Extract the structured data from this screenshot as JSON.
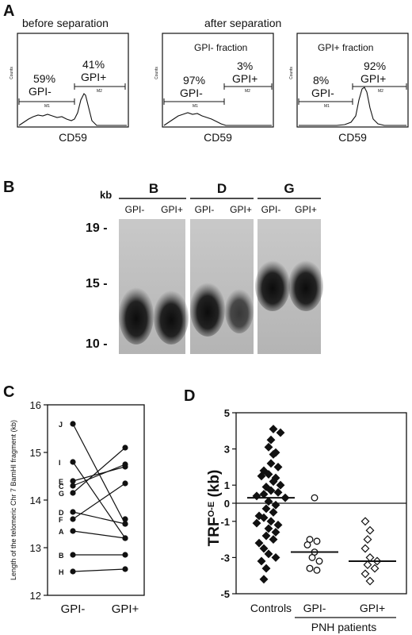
{
  "panel_a": {
    "letter": "A",
    "before_title": "before separation",
    "after_title": "after separation",
    "axis_label": "CD59",
    "y_axis_word": "Counts",
    "gate_left": "M1",
    "gate_right": "M2",
    "histograms": [
      {
        "subtitle": "",
        "left_pct": "59%",
        "left_label": "GPI-",
        "right_pct": "41%",
        "right_label": "GPI+"
      },
      {
        "subtitle": "GPI-  fraction",
        "left_pct": "97%",
        "left_label": "GPI-",
        "right_pct": "3%",
        "right_label": "GPI+"
      },
      {
        "subtitle": "GPI+ fraction",
        "left_pct": "8%",
        "left_label": "GPI-",
        "right_pct": "92%",
        "right_label": "GPI+"
      }
    ]
  },
  "panel_b": {
    "letter": "B",
    "kb_label": "kb",
    "size_markers": [
      "19 -",
      "15 -",
      "10 -"
    ],
    "groups": [
      {
        "name": "B",
        "lanes": [
          "GPI-",
          "GPI+"
        ]
      },
      {
        "name": "D",
        "lanes": [
          "GPI-",
          "GPI+"
        ]
      },
      {
        "name": "G",
        "lanes": [
          "GPI-",
          "GPI+"
        ]
      }
    ]
  },
  "panel_c": {
    "letter": "C",
    "chart_data": {
      "type": "line",
      "categories": [
        "GPI-",
        "GPI+"
      ],
      "ylabel": "Length of the telomeric Chr 7 BamHI fragment (kb)",
      "ylim": [
        12,
        16
      ],
      "yticks": [
        "12",
        "13",
        "14",
        "15",
        "16"
      ],
      "series": [
        {
          "name": "J",
          "values": [
            15.6,
            13.5
          ]
        },
        {
          "name": "I",
          "values": [
            14.8,
            13.2
          ]
        },
        {
          "name": "E",
          "values": [
            14.4,
            14.7
          ]
        },
        {
          "name": "G",
          "values": [
            14.15,
            15.1
          ]
        },
        {
          "name": "C",
          "values": [
            14.3,
            14.75
          ]
        },
        {
          "name": "D",
          "values": [
            13.75,
            13.5
          ]
        },
        {
          "name": "F",
          "values": [
            13.6,
            14.35
          ]
        },
        {
          "name": "A",
          "values": [
            13.35,
            13.2
          ]
        },
        {
          "name": "B",
          "values": [
            12.85,
            12.85
          ]
        },
        {
          "name": "H",
          "values": [
            12.5,
            12.55
          ]
        }
      ],
      "extra_points": [
        {
          "x": "GPI+",
          "y": 13.6
        }
      ]
    }
  },
  "panel_d": {
    "letter": "D",
    "chart_data": {
      "type": "scatter",
      "ylabel": "TRF",
      "ylabel_sup": "O-E",
      "ylabel_unit": " (kb)",
      "ylim": [
        -5,
        5
      ],
      "yticks": [
        "5",
        "3",
        "1",
        "0",
        "-1",
        "-3",
        "-5"
      ],
      "group_caption": "PNH patients",
      "groups": [
        {
          "name": "Controls",
          "marker": "filled-diamond",
          "mean": 0.3,
          "values": [
            4.1,
            3.9,
            3.5,
            3.1,
            2.8,
            2.7,
            2.2,
            2.0,
            1.8,
            1.6,
            1.4,
            1.2,
            1.0,
            0.9,
            0.7,
            0.6,
            0.5,
            0.3,
            0.1,
            -0.1,
            -0.3,
            -0.5,
            -0.7,
            -0.8,
            -1.0,
            -1.1,
            -1.2,
            -1.4,
            -1.6,
            -1.8,
            -2.0,
            -2.2,
            -2.5,
            -2.8,
            -3.0,
            -3.2,
            -3.6,
            -4.2,
            0.4,
            1.5
          ]
        },
        {
          "name": "GPI-",
          "marker": "open-circle",
          "mean": -2.7,
          "values": [
            0.3,
            -2.0,
            -2.1,
            -2.3,
            -2.7,
            -3.0,
            -3.2,
            -3.6,
            -3.7
          ]
        },
        {
          "name": "GPI+",
          "marker": "open-diamond",
          "mean": -3.2,
          "values": [
            -1.0,
            -1.5,
            -2.0,
            -2.5,
            -3.0,
            -3.2,
            -3.4,
            -3.6,
            -3.9,
            -4.3
          ]
        }
      ]
    }
  }
}
